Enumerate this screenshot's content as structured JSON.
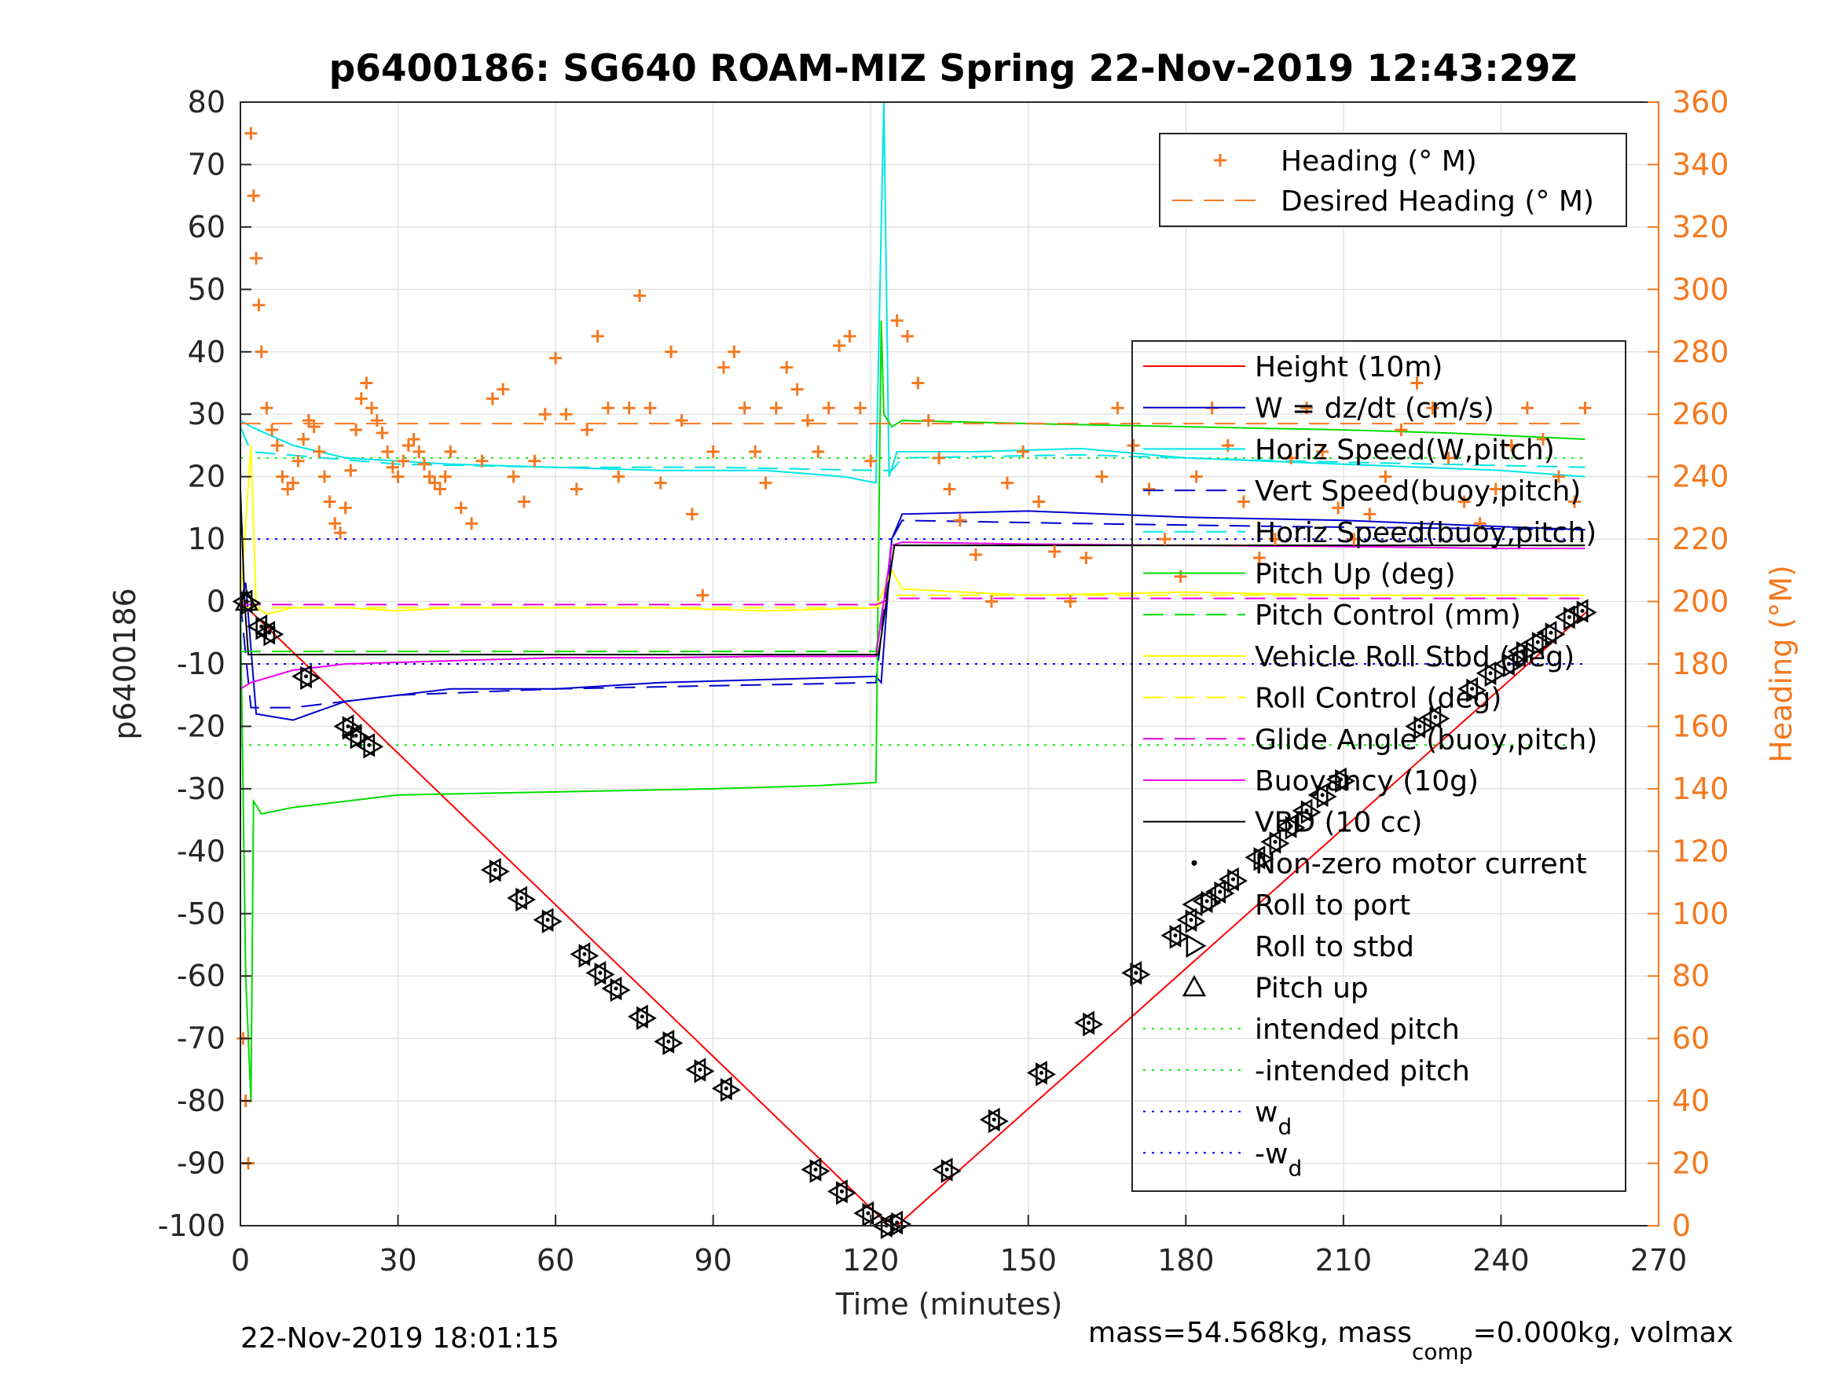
{
  "chart_data": {
    "type": "line",
    "title": "p6400186: SG640 ROAM-MIZ Spring 22-Nov-2019 12:43:29Z",
    "xlabel": "Time (minutes)",
    "ylabel": "p6400186",
    "y2label": "Heading (°M)",
    "xlim": [
      0,
      270
    ],
    "ylim": [
      -100,
      80
    ],
    "y2lim": [
      0,
      360
    ],
    "xticks": [
      0,
      30,
      60,
      90,
      120,
      150,
      180,
      210,
      240,
      270
    ],
    "yticks": [
      80,
      70,
      60,
      50,
      40,
      30,
      20,
      10,
      0,
      -10,
      -20,
      -30,
      -40,
      -50,
      -60,
      -70,
      -80,
      -90,
      -100
    ],
    "y2ticks": [
      360,
      340,
      320,
      300,
      280,
      260,
      240,
      220,
      200,
      180,
      160,
      140,
      120,
      100,
      80,
      60,
      40,
      20,
      0
    ],
    "grid": true,
    "footer_left": "22-Nov-2019 18:01:15",
    "footer_right": {
      "part1": "mass=54.568kg, mass",
      "sub": "comp",
      "part2": "=0.000kg, volmax"
    },
    "heading_legend": {
      "placement": "top-right",
      "entries": [
        {
          "label": "Heading (° M)",
          "color": "#f47920",
          "marker": "plus"
        },
        {
          "label": "Desired Heading (° M)",
          "color": "#f47920",
          "style": "dashed"
        }
      ]
    },
    "legend": {
      "placement": "right",
      "entries": [
        {
          "label": "Height (10m)",
          "color": "#ff0000",
          "style": "solid"
        },
        {
          "label": "W = dz/dt (cm/s)",
          "color": "#0000cc",
          "style": "solid"
        },
        {
          "label": "Horiz Speed(W,pitch)",
          "color": "#00e5e5",
          "style": "solid"
        },
        {
          "label": "Vert Speed(buoy,pitch)",
          "color": "#0000cc",
          "style": "dashed"
        },
        {
          "label": "Horiz Speed(buoy,pitch)",
          "color": "#00e5e5",
          "style": "dashed"
        },
        {
          "label": "Pitch Up (deg)",
          "color": "#00dd00",
          "style": "solid"
        },
        {
          "label": "Pitch Control (mm)",
          "color": "#00dd00",
          "style": "dashed"
        },
        {
          "label": "Vehicle Roll Stbd (deg)",
          "color": "#ffff00",
          "style": "solid"
        },
        {
          "label": "Roll Control (deg)",
          "color": "#ffff00",
          "style": "dashed"
        },
        {
          "label": "Glide Angle (buoy,pitch)",
          "color": "#ee00ee",
          "style": "dashed"
        },
        {
          "label": "Buoyancy (10g)",
          "color": "#ee00ee",
          "style": "solid"
        },
        {
          "label": "VBD (10 cc)",
          "color": "#000000",
          "style": "solid"
        },
        {
          "label": "Non-zero motor current",
          "color": "#000000",
          "marker": "dot"
        },
        {
          "label": "Roll to port",
          "color": "#000000",
          "marker": "triangle-left"
        },
        {
          "label": "Roll to stbd",
          "color": "#000000",
          "marker": "triangle-right"
        },
        {
          "label": "Pitch up",
          "color": "#000000",
          "marker": "triangle-up"
        },
        {
          "label": "intended pitch",
          "color": "#00ee00",
          "style": "dotted"
        },
        {
          "label": "-intended pitch",
          "color": "#00ee00",
          "style": "dotted"
        },
        {
          "label": "w",
          "sub": "d",
          "color": "#0000ff",
          "style": "dotted"
        },
        {
          "label": "-w",
          "sub": "d",
          "color": "#0000ff",
          "style": "dotted"
        }
      ]
    },
    "series": [
      {
        "name": "Height (10m)",
        "color": "#ff0000",
        "x": [
          0,
          123.5,
          125,
          256.5
        ],
        "y": [
          0,
          -100,
          -100,
          -1.5
        ]
      },
      {
        "name": "W = dz/dt (cm/s)",
        "color": "#0000cc",
        "x": [
          0,
          1,
          3,
          10,
          20,
          40,
          60,
          80,
          100,
          121,
          122,
          124,
          126,
          150,
          180,
          210,
          240,
          256
        ],
        "y": [
          0,
          3,
          -18,
          -19,
          -16,
          -14,
          -14,
          -13,
          -12.5,
          -12,
          -13,
          10,
          14,
          14.5,
          13.5,
          13,
          12,
          11.5
        ]
      },
      {
        "name": "Horiz Speed(W,pitch)",
        "color": "#00e5e5",
        "x": [
          0,
          2,
          10,
          20,
          40,
          60,
          80,
          100,
          115,
          121,
          122.5,
          123.5,
          125,
          140,
          160,
          180,
          210,
          240,
          256
        ],
        "y": [
          29,
          28,
          25,
          23,
          22,
          21.5,
          21,
          21,
          20,
          19,
          80,
          20,
          24,
          24,
          24.5,
          23,
          22,
          21,
          20
        ]
      },
      {
        "name": "Vert Speed(buoy,pitch)",
        "color": "#0000cc",
        "x": [
          0,
          2,
          10,
          30,
          60,
          90,
          121,
          124,
          126,
          160,
          200,
          256
        ],
        "y": [
          0,
          -17,
          -17,
          -15,
          -14,
          -13.5,
          -13,
          10,
          13,
          12.5,
          12,
          11.5
        ]
      },
      {
        "name": "Horiz Speed(buoy,pitch)",
        "color": "#00e5e5",
        "x": [
          0,
          2,
          30,
          60,
          90,
          121,
          124,
          126,
          160,
          200,
          256
        ],
        "y": [
          28,
          24,
          22,
          21.5,
          21.5,
          21,
          21,
          23,
          23.5,
          22.5,
          21.5
        ]
      },
      {
        "name": "Pitch Up (deg)",
        "color": "#00dd00",
        "x": [
          0,
          1,
          2,
          2.5,
          4,
          10,
          30,
          60,
          90,
          110,
          121,
          122,
          122.5,
          124,
          126,
          150,
          180,
          210,
          230,
          256
        ],
        "y": [
          0,
          -60,
          -80,
          -32,
          -34,
          -33,
          -31,
          -30.5,
          -30,
          -29.5,
          -29,
          45,
          30,
          28,
          29,
          28.5,
          28,
          27.5,
          27,
          26
        ]
      },
      {
        "name": "Pitch Control (mm)",
        "color": "#00dd00",
        "x": [
          0,
          121,
          124,
          256
        ],
        "y": [
          -8,
          -8,
          9,
          9
        ]
      },
      {
        "name": "Vehicle Roll Stbd (deg)",
        "color": "#ffff00",
        "x": [
          0,
          2,
          3,
          5,
          10,
          20,
          30,
          40,
          60,
          80,
          100,
          121,
          124,
          126,
          150,
          180,
          210,
          240,
          256
        ],
        "y": [
          0,
          25,
          -1,
          -2,
          -1,
          -1,
          -1.5,
          -1,
          -1,
          -1,
          -1.5,
          -1,
          5,
          2,
          1,
          1.5,
          1,
          1,
          1
        ]
      },
      {
        "name": "Roll Control (deg)",
        "color": "#ffff00",
        "x": [
          0,
          121,
          124,
          256
        ],
        "y": [
          -1,
          -1,
          1,
          1
        ]
      },
      {
        "name": "Glide Angle (buoy,pitch)",
        "color": "#ee00ee",
        "x": [
          0,
          121,
          124,
          256
        ],
        "y": [
          -0.5,
          -0.5,
          0.5,
          0.5
        ]
      },
      {
        "name": "Buoyancy (10g)",
        "color": "#ee00ee",
        "x": [
          0,
          2,
          10,
          20,
          40,
          60,
          80,
          100,
          121,
          124,
          126,
          150,
          180,
          210,
          240,
          256
        ],
        "y": [
          -14,
          -13,
          -11,
          -10,
          -9.5,
          -9,
          -9,
          -8.8,
          -8.8,
          9,
          9.5,
          9.2,
          9,
          8.8,
          8.5,
          8.5
        ]
      },
      {
        "name": "VBD (10 cc)",
        "color": "#000000",
        "x": [
          0,
          0.8,
          1.5,
          121.5,
          124.5,
          256
        ],
        "y": [
          18,
          0,
          -8.5,
          -8.5,
          9,
          9
        ]
      }
    ],
    "reference_lines": [
      {
        "name": "intended pitch",
        "y": 23,
        "color": "#00ee00"
      },
      {
        "name": "-intended pitch",
        "y": -23,
        "color": "#00ee00"
      },
      {
        "name": "w_d",
        "y": 10,
        "color": "#0000ff"
      },
      {
        "name": "-w_d",
        "y": -10,
        "color": "#0000ff"
      }
    ],
    "desired_heading": {
      "x": [
        0,
        255
      ],
      "y2": [
        257,
        257
      ]
    },
    "heading_points": {
      "x": [
        0.5,
        1,
        1.5,
        2,
        2.5,
        3,
        3.5,
        4,
        5,
        6,
        7,
        8,
        9,
        10,
        11,
        12,
        13,
        14,
        15,
        16,
        17,
        18,
        19,
        20,
        21,
        22,
        23,
        24,
        25,
        26,
        27,
        28,
        29,
        30,
        31,
        32,
        33,
        34,
        35,
        36,
        37,
        38,
        39,
        40,
        42,
        44,
        46,
        48,
        50,
        52,
        54,
        56,
        58,
        60,
        62,
        64,
        66,
        68,
        70,
        72,
        74,
        76,
        78,
        80,
        82,
        84,
        86,
        88,
        90,
        92,
        94,
        96,
        98,
        100,
        102,
        104,
        106,
        108,
        110,
        112,
        114,
        116,
        118,
        120,
        125,
        127,
        129,
        131,
        133,
        135,
        137,
        140,
        143,
        146,
        149,
        152,
        155,
        158,
        161,
        164,
        167,
        170,
        173,
        176,
        179,
        182,
        185,
        188,
        191,
        194,
        197,
        200,
        203,
        206,
        209,
        212,
        215,
        218,
        221,
        224,
        227,
        230,
        233,
        236,
        239,
        242,
        245,
        248,
        251,
        254,
        256
      ],
      "y2": [
        60,
        40,
        20,
        350,
        330,
        310,
        295,
        280,
        262,
        255,
        250,
        240,
        236,
        238,
        245,
        252,
        258,
        256,
        248,
        240,
        232,
        225,
        222,
        230,
        242,
        255,
        265,
        270,
        262,
        258,
        254,
        248,
        243,
        240,
        245,
        250,
        252,
        248,
        244,
        240,
        238,
        236,
        240,
        248,
        230,
        225,
        245,
        265,
        268,
        240,
        232,
        245,
        260,
        278,
        260,
        236,
        255,
        285,
        262,
        240,
        262,
        298,
        262,
        238,
        280,
        258,
        228,
        202,
        248,
        275,
        280,
        262,
        248,
        238,
        262,
        275,
        268,
        258,
        248,
        262,
        282,
        285,
        262,
        245,
        290,
        285,
        270,
        258,
        246,
        236,
        226,
        215,
        200,
        238,
        248,
        232,
        216,
        200,
        214,
        240,
        262,
        250,
        236,
        220,
        208,
        240,
        262,
        250,
        232,
        214,
        220,
        246,
        262,
        248,
        230,
        220,
        228,
        240,
        255,
        270,
        262,
        246,
        232,
        225,
        236,
        250,
        262,
        252,
        240,
        232,
        262
      ]
    },
    "motor_markers_left": [
      {
        "x": 1.2,
        "y": 0
      },
      {
        "x": 4,
        "y": -4
      },
      {
        "x": 5.5,
        "y": -5
      },
      {
        "x": 12.5,
        "y": -12
      },
      {
        "x": 20.5,
        "y": -20
      },
      {
        "x": 22,
        "y": -21.5
      },
      {
        "x": 24.5,
        "y": -23
      },
      {
        "x": 48.5,
        "y": -43
      },
      {
        "x": 53.5,
        "y": -47.5
      },
      {
        "x": 58.5,
        "y": -51
      },
      {
        "x": 65.5,
        "y": -56.5
      },
      {
        "x": 68.5,
        "y": -59.5
      },
      {
        "x": 71.5,
        "y": -62
      },
      {
        "x": 76.5,
        "y": -66.5
      },
      {
        "x": 81.5,
        "y": -70.5
      },
      {
        "x": 87.5,
        "y": -75
      },
      {
        "x": 92.5,
        "y": -78
      },
      {
        "x": 109.5,
        "y": -91
      },
      {
        "x": 114.5,
        "y": -94.5
      },
      {
        "x": 119.5,
        "y": -98
      },
      {
        "x": 123,
        "y": -100
      },
      {
        "x": 125,
        "y": -99.5
      },
      {
        "x": 134.5,
        "y": -91
      },
      {
        "x": 143.5,
        "y": -83
      },
      {
        "x": 152.5,
        "y": -75.5
      },
      {
        "x": 161.5,
        "y": -67.5
      },
      {
        "x": 170.5,
        "y": -59.5
      },
      {
        "x": 178,
        "y": -53.5
      },
      {
        "x": 181,
        "y": -51
      },
      {
        "x": 184,
        "y": -48
      },
      {
        "x": 186.5,
        "y": -46.5
      },
      {
        "x": 189,
        "y": -44.5
      },
      {
        "x": 194,
        "y": -41
      },
      {
        "x": 197,
        "y": -38.5
      },
      {
        "x": 200,
        "y": -36
      },
      {
        "x": 203,
        "y": -33.5
      },
      {
        "x": 206,
        "y": -31
      },
      {
        "x": 209.5,
        "y": -28.5
      },
      {
        "x": 224.5,
        "y": -20
      },
      {
        "x": 227.5,
        "y": -18.5
      },
      {
        "x": 234.5,
        "y": -14
      },
      {
        "x": 238,
        "y": -11.5
      },
      {
        "x": 241.5,
        "y": -10
      },
      {
        "x": 244,
        "y": -8
      },
      {
        "x": 247,
        "y": -6.5
      },
      {
        "x": 249.5,
        "y": -5
      },
      {
        "x": 253,
        "y": -2.5
      },
      {
        "x": 255.5,
        "y": -1.5
      }
    ]
  }
}
